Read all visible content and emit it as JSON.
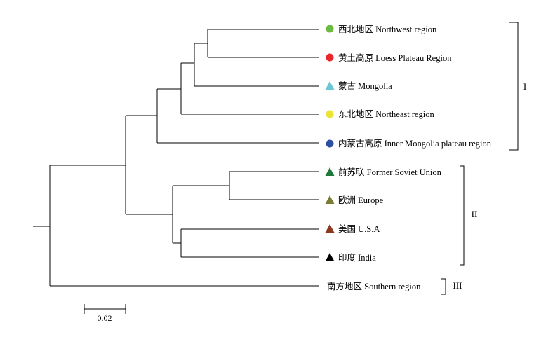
{
  "leaves": [
    {
      "id": "northwest",
      "label": "西北地区 Northwest region",
      "marker": "circle",
      "color": "#6dbb3e"
    },
    {
      "id": "loess",
      "label": "黄土高原 Loess Plateau Region",
      "marker": "circle",
      "color": "#e8262d"
    },
    {
      "id": "mongolia",
      "label": "蒙古 Mongolia",
      "marker": "triangle",
      "color": "#6cc6d4"
    },
    {
      "id": "northeast",
      "label": "东北地区 Northeast region",
      "marker": "circle",
      "color": "#ece337"
    },
    {
      "id": "inner-mongolia",
      "label": "内蒙古高原 Inner Mongolia plateau region",
      "marker": "circle",
      "color": "#2d4fa1"
    },
    {
      "id": "former-soviet",
      "label": "前苏联 Former Soviet Union",
      "marker": "triangle",
      "color": "#1f7a3a"
    },
    {
      "id": "europe",
      "label": "欧洲 Europe",
      "marker": "triangle",
      "color": "#7b7c33"
    },
    {
      "id": "usa",
      "label": "美国 U.S.A",
      "marker": "triangle",
      "color": "#8b3a1f"
    },
    {
      "id": "india",
      "label": "印度 India",
      "marker": "triangle",
      "color": "#000000"
    },
    {
      "id": "southern",
      "label": "南方地区 Southern region",
      "marker": "none",
      "color": ""
    }
  ],
  "groups": [
    {
      "label": "I",
      "members": [
        "northwest",
        "loess",
        "mongolia",
        "northeast",
        "inner-mongolia"
      ]
    },
    {
      "label": "II",
      "members": [
        "former-soviet",
        "europe",
        "usa",
        "india"
      ]
    },
    {
      "label": "III",
      "members": [
        "southern"
      ]
    }
  ],
  "scale_bar": {
    "label": "0.02"
  }
}
